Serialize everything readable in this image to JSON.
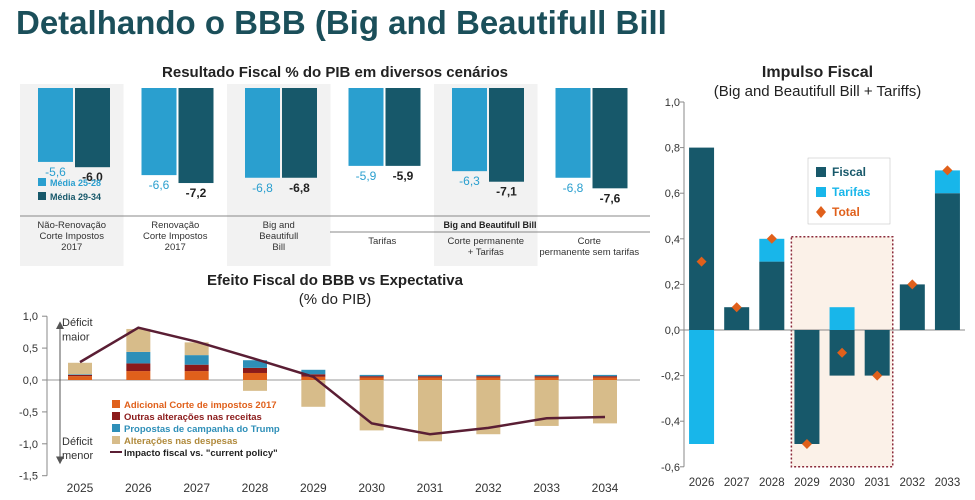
{
  "page": {
    "title": "Detalhando o BBB (Big and Beautifull Bill"
  },
  "colors": {
    "light_blue": "#2a9fcf",
    "dark_teal": "#17586a",
    "tarifas": "#18b6ea",
    "orange": "#e0601b",
    "dark_red": "#8b1a1a",
    "blue_campaign": "#2e8fb8",
    "tan": "#d7bc8a",
    "line": "#5a1e34",
    "shade": "#f2f2f2",
    "highlight": "#fbf1e8"
  },
  "chart_data": [
    {
      "id": "resultado",
      "type": "bar",
      "title": "Resultado Fiscal % do PIB em diversos cenários",
      "legend": [
        "Média 25-28",
        "Média 29-34"
      ],
      "legend_placement": "bottom-left",
      "categories": [
        "Não-Renovação\nCorte Impostos\n2017",
        "Renovação\nCorte Impostos\n2017",
        "Big and\nBeautifull\nBill",
        "Tarifas",
        "Corte permanente\n+ Tarifas",
        "Corte\npermanente sem tarifas"
      ],
      "group_label": "Big and Beautifull Bill",
      "series": [
        {
          "name": "Média 25-28",
          "values": [
            -5.6,
            -6.6,
            -6.8,
            -5.9,
            -6.3,
            -6.8
          ]
        },
        {
          "name": "Média 29-34",
          "values": [
            -6.0,
            -7.2,
            -6.8,
            -5.9,
            -7.1,
            -7.6
          ]
        }
      ],
      "labels": [
        [
          "-5,6",
          "-6,6",
          "-6,8",
          "-5,9",
          "-6,3",
          "-6,8"
        ],
        [
          "-6,0",
          "-7,2",
          "-6,8",
          "-5,9",
          "-7,1",
          "-7,6"
        ]
      ]
    },
    {
      "id": "efeito",
      "type": "bar",
      "title": "Efeito Fiscal do BBB vs Expectativa",
      "subtitle": "(% do PIB)",
      "categories": [
        "2025",
        "2026",
        "2027",
        "2028",
        "2029",
        "2030",
        "2031",
        "2032",
        "2033",
        "2034"
      ],
      "yticks": [
        "1,0",
        "0,5",
        "0,0",
        "-0,5",
        "-1,0",
        "-1,5"
      ],
      "ylim": [
        -1.5,
        1.0
      ],
      "annotations": [
        "Déficit",
        "maior",
        "Déficit",
        "menor"
      ],
      "series": [
        {
          "name": "Adicional Corte de impostos 2017",
          "values": [
            0.06,
            0.14,
            0.14,
            0.11,
            0.05,
            0.04,
            0.04,
            0.04,
            0.04,
            0.04
          ]
        },
        {
          "name": "Outras alterações nas receitas",
          "values": [
            0.02,
            0.12,
            0.1,
            0.08,
            0.04,
            0.02,
            0.02,
            0.02,
            0.02,
            0.02
          ]
        },
        {
          "name": "Propostas de campanha do Trump",
          "values": [
            0.01,
            0.18,
            0.15,
            0.12,
            0.07,
            0.02,
            0.02,
            0.02,
            0.02,
            0.02
          ]
        },
        {
          "name": "Alterações nas despesas",
          "values": [
            0.18,
            0.36,
            0.2,
            -0.17,
            -0.42,
            -0.79,
            -0.96,
            -0.85,
            -0.72,
            -0.68
          ]
        },
        {
          "name": "Impacto fiscal vs. \"current policy\"",
          "type": "line",
          "values": [
            0.28,
            0.82,
            0.6,
            0.33,
            0.05,
            -0.68,
            -0.85,
            -0.75,
            -0.6,
            -0.58
          ]
        }
      ]
    },
    {
      "id": "impulso",
      "type": "bar",
      "title": "Impulso Fiscal",
      "subtitle": "(Big and Beautifull Bill + Tariffs)",
      "categories": [
        "2026",
        "2027",
        "2028",
        "2029",
        "2030",
        "2031",
        "2032",
        "2033"
      ],
      "yticks": [
        "1,0",
        "0,8",
        "0,6",
        "0,4",
        "0,2",
        "0,0",
        "-0,2",
        "-0,4",
        "-0,6"
      ],
      "ylim": [
        -0.6,
        1.0
      ],
      "legend": [
        "Fiscal",
        "Tarifas",
        "Total"
      ],
      "legend_placement": "top-center",
      "highlight_years": [
        "2029",
        "2030",
        "2031"
      ],
      "series": [
        {
          "name": "Fiscal",
          "values": [
            0.8,
            0.1,
            0.3,
            -0.5,
            -0.2,
            -0.2,
            0.2,
            0.6
          ]
        },
        {
          "name": "Tarifas",
          "values": [
            -0.5,
            0,
            0.1,
            0,
            0.1,
            0,
            0,
            0.1
          ]
        },
        {
          "name": "Total",
          "type": "marker",
          "values": [
            0.3,
            0.1,
            0.4,
            -0.5,
            -0.1,
            -0.2,
            0.2,
            0.7
          ]
        }
      ]
    }
  ]
}
